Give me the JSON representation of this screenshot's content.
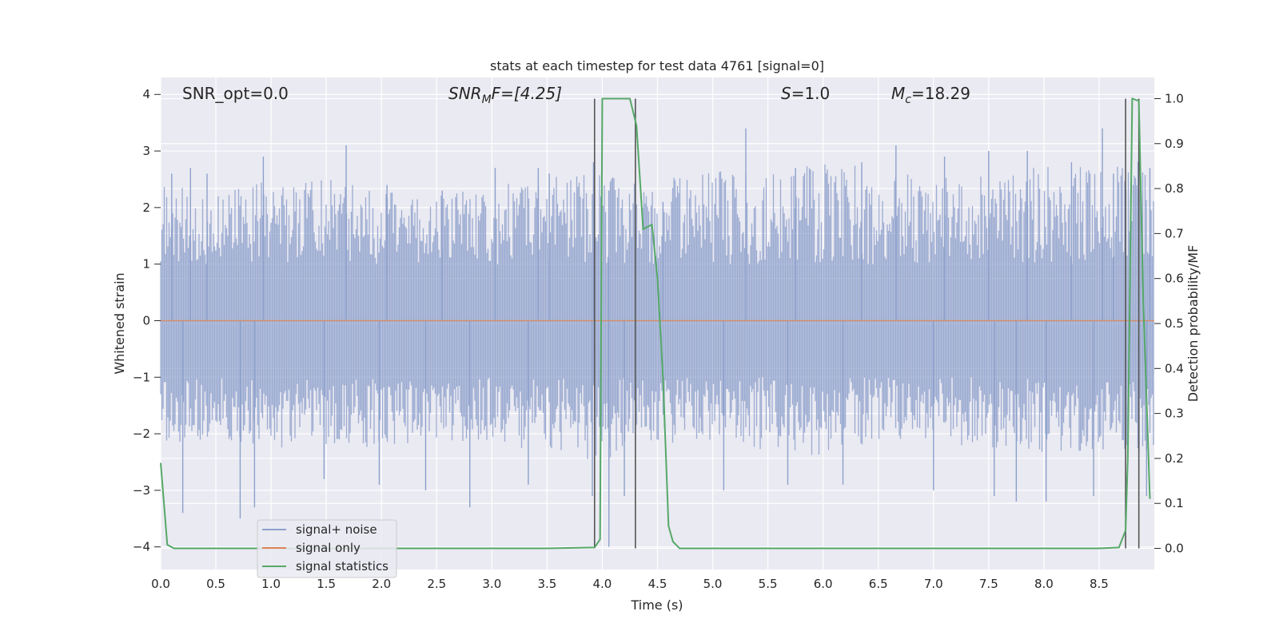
{
  "chart_data": {
    "type": "line",
    "title": "stats at each timestep for test data 4761 [signal=0]",
    "xlabel": "Time (s)",
    "ylabel": "Whitened strain",
    "y2label": "Detection probability/MF",
    "xlim": [
      0,
      9.0
    ],
    "ylim": [
      -4.4,
      4.3
    ],
    "y2lim": [
      -0.047,
      1.047
    ],
    "grid": true,
    "legend_position": "lower-left",
    "x_ticks": [
      0.0,
      0.5,
      1.0,
      1.5,
      2.0,
      2.5,
      3.0,
      3.5,
      4.0,
      4.5,
      5.0,
      5.5,
      6.0,
      6.5,
      7.0,
      7.5,
      8.0,
      8.5
    ],
    "x_tick_labels": [
      "0.0",
      "0.5",
      "1.0",
      "1.5",
      "2.0",
      "2.5",
      "3.0",
      "3.5",
      "4.0",
      "4.5",
      "5.0",
      "5.5",
      "6.0",
      "6.5",
      "7.0",
      "7.5",
      "8.0",
      "8.5"
    ],
    "y_ticks": [
      4,
      3,
      2,
      1,
      0,
      -1,
      -2,
      -3,
      -4
    ],
    "y_tick_labels": [
      "4",
      "3",
      "2",
      "1",
      "0",
      "−1",
      "−2",
      "−3",
      "−4"
    ],
    "y2_ticks": [
      1.0,
      0.9,
      0.8,
      0.7,
      0.6,
      0.5,
      0.4,
      0.3,
      0.2,
      0.1,
      0.0
    ],
    "y2_tick_labels": [
      "1.0",
      "0.9",
      "0.8",
      "0.7",
      "0.6",
      "0.5",
      "0.4",
      "0.3",
      "0.2",
      "0.1",
      "0.0"
    ],
    "annotations": {
      "snr_opt": "SNR_opt=0.0",
      "snr_mf_main": "SNR",
      "snr_mf_sub": "M",
      "snr_mf_tail": "F=[4.25]",
      "s_main": "S",
      "s_tail": "=1.0",
      "mc_main": "M",
      "mc_sub": "c",
      "mc_tail": "=18.29"
    },
    "noise_envelope": {
      "x": [
        0.0,
        0.5,
        1.0,
        1.5,
        2.0,
        2.5,
        3.0,
        3.5,
        3.9,
        4.0,
        4.3,
        4.5,
        5.0,
        5.5,
        6.0,
        6.5,
        7.0,
        7.5,
        8.0,
        8.5,
        8.8,
        9.0
      ],
      "upper": [
        2.4,
        2.3,
        2.5,
        2.6,
        2.3,
        2.2,
        2.4,
        2.5,
        2.7,
        2.6,
        2.5,
        2.5,
        2.7,
        2.6,
        2.8,
        2.7,
        2.5,
        2.6,
        2.8,
        2.7,
        2.9,
        2.6
      ],
      "lower": [
        -2.2,
        -2.1,
        -2.3,
        -2.2,
        -2.3,
        -2.1,
        -2.2,
        -2.3,
        -2.6,
        -2.5,
        -2.2,
        -2.2,
        -2.1,
        -2.3,
        -2.4,
        -2.2,
        -2.1,
        -2.3,
        -2.4,
        -2.3,
        -2.5,
        -2.3
      ]
    },
    "series": [
      {
        "name": "signal+ noise",
        "color": "#8da0cb",
        "style": "dense-noise",
        "spikes_up": [
          [
            0.1,
            2.6
          ],
          [
            0.27,
            2.7
          ],
          [
            0.42,
            2.6
          ],
          [
            0.93,
            2.9
          ],
          [
            1.68,
            3.1
          ],
          [
            2.05,
            2.4
          ],
          [
            2.55,
            2.3
          ],
          [
            3.03,
            2.7
          ],
          [
            3.42,
            2.7
          ],
          [
            3.52,
            2.6
          ],
          [
            3.92,
            2.8
          ],
          [
            4.06,
            2.3
          ],
          [
            4.55,
            2.1
          ],
          [
            5.3,
            3.4
          ],
          [
            5.75,
            2.7
          ],
          [
            6.35,
            2.8
          ],
          [
            6.66,
            3.1
          ],
          [
            7.1,
            2.9
          ],
          [
            7.5,
            3.0
          ],
          [
            7.85,
            3.0
          ],
          [
            8.25,
            2.8
          ],
          [
            8.53,
            3.4
          ],
          [
            8.63,
            2.6
          ],
          [
            8.96,
            2.7
          ]
        ],
        "spikes_down": [
          [
            0.2,
            -3.4
          ],
          [
            0.72,
            -3.5
          ],
          [
            0.85,
            -3.3
          ],
          [
            1.48,
            -2.8
          ],
          [
            1.98,
            -2.9
          ],
          [
            2.4,
            -3.0
          ],
          [
            2.8,
            -3.3
          ],
          [
            3.33,
            -2.9
          ],
          [
            3.91,
            -3.1
          ],
          [
            4.06,
            -4.0
          ],
          [
            4.2,
            -3.1
          ],
          [
            5.1,
            -3.0
          ],
          [
            5.68,
            -2.9
          ],
          [
            6.18,
            -2.9
          ],
          [
            7.0,
            -3.0
          ],
          [
            7.55,
            -3.1
          ],
          [
            7.75,
            -3.2
          ],
          [
            8.02,
            -3.2
          ],
          [
            8.45,
            -3.1
          ],
          [
            8.93,
            -3.1
          ]
        ]
      },
      {
        "name": "signal only",
        "color": "#dd8452",
        "x": [
          0.0,
          9.0
        ],
        "y": [
          0.0,
          0.0
        ]
      },
      {
        "name": "signal statistics",
        "color": "#55a868",
        "axis": "right",
        "x": [
          0.0,
          0.06,
          0.12,
          0.5,
          1.0,
          2.0,
          3.0,
          3.5,
          3.93,
          3.98,
          4.0,
          4.1,
          4.25,
          4.31,
          4.37,
          4.45,
          4.5,
          4.55,
          4.6,
          4.64,
          4.7,
          5.0,
          6.0,
          7.0,
          8.0,
          8.5,
          8.68,
          8.74,
          8.76,
          8.8,
          8.86,
          8.9,
          8.96
        ],
        "y": [
          0.19,
          0.008,
          0.0,
          0.0,
          0.0,
          0.0,
          0.0,
          0.0,
          0.002,
          0.02,
          1.0,
          1.0,
          1.0,
          0.94,
          0.71,
          0.72,
          0.6,
          0.38,
          0.05,
          0.015,
          0.0,
          0.0,
          0.0,
          0.0,
          0.0,
          0.0,
          0.002,
          0.04,
          0.2,
          1.0,
          0.995,
          0.55,
          0.11
        ]
      }
    ],
    "vertical_markers": {
      "color": "#555555",
      "x": [
        3.93,
        4.3,
        8.74,
        8.86
      ]
    }
  }
}
